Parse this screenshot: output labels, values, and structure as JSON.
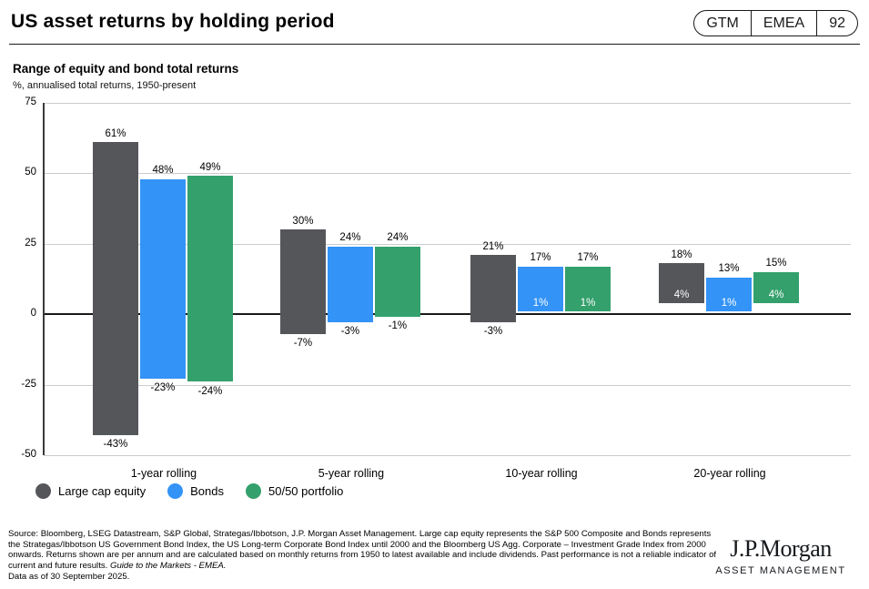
{
  "header": {
    "title": "US asset returns by holding period",
    "badge": {
      "gtm": "GTM",
      "region": "EMEA",
      "page": "92"
    }
  },
  "chart_data": {
    "type": "bar",
    "subtype": "floating-range-columns",
    "title": "Range of equity and bond total returns",
    "subtitle": "%, annualised total returns, 1950-present",
    "categories": [
      "1-year rolling",
      "5-year rolling",
      "10-year rolling",
      "20-year rolling"
    ],
    "series": [
      {
        "name": "Large cap equity",
        "color": "#54565A",
        "ranges": [
          {
            "max": 61,
            "min": -43
          },
          {
            "max": 30,
            "min": -7
          },
          {
            "max": 21,
            "min": -3
          },
          {
            "max": 18,
            "min": 4
          }
        ]
      },
      {
        "name": "Bonds",
        "color": "#3393F6",
        "ranges": [
          {
            "max": 48,
            "min": -23
          },
          {
            "max": 24,
            "min": -3
          },
          {
            "max": 17,
            "min": 1
          },
          {
            "max": 13,
            "min": 1
          }
        ]
      },
      {
        "name": "50/50 portfolio",
        "color": "#34A06C",
        "ranges": [
          {
            "max": 49,
            "min": -24
          },
          {
            "max": 24,
            "min": -1
          },
          {
            "max": 17,
            "min": 1
          },
          {
            "max": 15,
            "min": 4
          }
        ]
      }
    ],
    "ylim": [
      -50,
      75
    ],
    "yticks": [
      75,
      50,
      25,
      0,
      -25,
      -50
    ],
    "grid": "horizontal",
    "legend_position": "bottom-left",
    "value_label_format": "{value}%",
    "label_rule": "max printed above bar in black; min printed below bar in black when negative, inside bar bottom in white when positive",
    "colors": {
      "gridline": "#cccccc",
      "zero_line": "#1a1a1a",
      "axis": "#3a3a3a"
    }
  },
  "footer": {
    "source_text": "Source: Bloomberg, LSEG Datastream, S&P Global, Strategas/Ibbotson, J.P. Morgan Asset Management. Large cap equity represents the S&P 500 Composite and Bonds represents the Strategas/Ibbotson US Government Bond Index, the US Long-term Corporate Bond Index until 2000 and the Bloomberg US Agg. Corporate – Investment Grade Index from 2000 onwards. Returns shown are per annum and are calculated based on monthly returns from 1950 to latest available and include dividends. Past performance is not a reliable indicator of current and future results. ",
    "source_italic": "Guide to the Markets - EMEA.",
    "data_as_of": "Data as of 30 September 2025.",
    "logo_primary": "J.P.Morgan",
    "logo_secondary": "ASSET MANAGEMENT"
  }
}
